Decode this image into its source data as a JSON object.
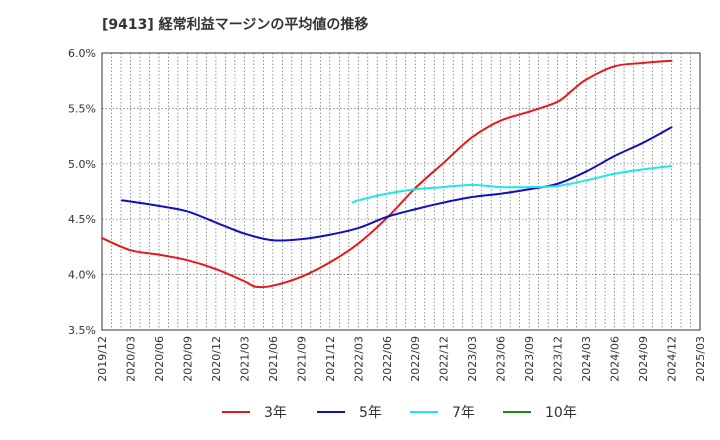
{
  "chart_data": {
    "type": "line",
    "title": "[9413]  経常利益マージンの平均値の推移",
    "xlabel": "",
    "ylabel": "",
    "x_ticks": [
      "2019/12",
      "2020/03",
      "2020/06",
      "2020/09",
      "2020/12",
      "2021/03",
      "2021/06",
      "2021/09",
      "2021/12",
      "2022/03",
      "2022/06",
      "2022/09",
      "2022/12",
      "2023/03",
      "2023/06",
      "2023/09",
      "2023/12",
      "2024/03",
      "2024/06",
      "2024/09",
      "2024/12",
      "2025/03"
    ],
    "y_ticks": [
      "3.5%",
      "4.0%",
      "4.5%",
      "5.0%",
      "5.5%",
      "6.0%"
    ],
    "ylim": [
      3.5,
      6.0
    ],
    "grid": true,
    "legend_position": "bottom",
    "series": [
      {
        "name": "3年",
        "color": "#e31a1c",
        "points": [
          [
            0,
            4.33
          ],
          [
            1,
            4.22
          ],
          [
            2,
            4.18
          ],
          [
            3,
            4.13
          ],
          [
            4,
            4.05
          ],
          [
            5,
            3.94
          ],
          [
            5.4,
            3.89
          ],
          [
            6,
            3.9
          ],
          [
            7,
            3.98
          ],
          [
            8,
            4.11
          ],
          [
            9,
            4.28
          ],
          [
            10,
            4.51
          ],
          [
            11,
            4.78
          ],
          [
            12,
            5.01
          ],
          [
            13,
            5.24
          ],
          [
            14,
            5.39
          ],
          [
            15,
            5.47
          ],
          [
            16,
            5.56
          ],
          [
            16.5,
            5.66
          ],
          [
            17,
            5.76
          ],
          [
            18,
            5.88
          ],
          [
            19,
            5.91
          ],
          [
            20,
            5.93
          ]
        ]
      },
      {
        "name": "5年",
        "color": "#1111bb",
        "points": [
          [
            0.7,
            4.67
          ],
          [
            1,
            4.66
          ],
          [
            2,
            4.62
          ],
          [
            3,
            4.57
          ],
          [
            4,
            4.47
          ],
          [
            5,
            4.37
          ],
          [
            6,
            4.31
          ],
          [
            7,
            4.32
          ],
          [
            8,
            4.36
          ],
          [
            9,
            4.42
          ],
          [
            10,
            4.52
          ],
          [
            11,
            4.59
          ],
          [
            12,
            4.65
          ],
          [
            13,
            4.7
          ],
          [
            14,
            4.73
          ],
          [
            15,
            4.77
          ],
          [
            16,
            4.82
          ],
          [
            17,
            4.93
          ],
          [
            18,
            5.07
          ],
          [
            19,
            5.19
          ],
          [
            20,
            5.33
          ]
        ]
      },
      {
        "name": "7年",
        "color": "#22e5e5",
        "points": [
          [
            8.8,
            4.65
          ],
          [
            9,
            4.67
          ],
          [
            10,
            4.73
          ],
          [
            11,
            4.77
          ],
          [
            12,
            4.79
          ],
          [
            13,
            4.81
          ],
          [
            14,
            4.79
          ],
          [
            15,
            4.79
          ],
          [
            16,
            4.8
          ],
          [
            17,
            4.85
          ],
          [
            18,
            4.91
          ],
          [
            19,
            4.95
          ],
          [
            20,
            4.98
          ]
        ]
      },
      {
        "name": "10年",
        "color": "#1a8a1a",
        "points": []
      }
    ]
  }
}
